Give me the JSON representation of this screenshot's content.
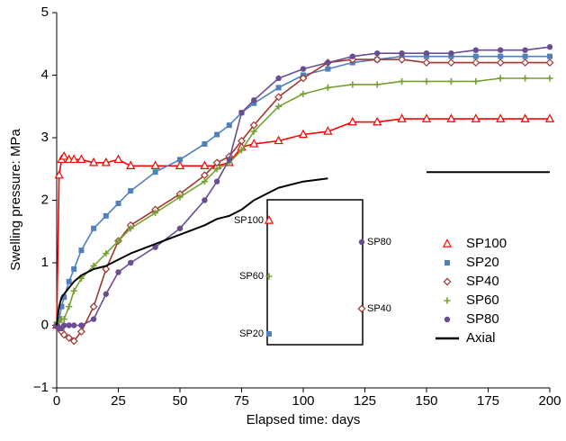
{
  "chart_data": {
    "type": "line",
    "xlabel": "Elapsed time: days",
    "ylabel": "Swelling pressure: MPa",
    "xlim": [
      0,
      200
    ],
    "xticks": [
      0,
      25,
      50,
      75,
      100,
      125,
      150,
      175,
      200
    ],
    "ylim": [
      -1,
      5
    ],
    "yticks": [
      {
        "value": -1,
        "label": "−1"
      },
      0,
      1,
      2,
      3,
      4,
      5
    ],
    "legend": "lower right",
    "x": [
      0,
      1,
      2,
      3,
      5,
      7,
      10,
      15,
      20,
      25,
      30,
      40,
      50,
      60,
      65,
      70,
      75,
      80,
      90,
      100,
      110,
      120,
      130,
      140,
      150,
      160,
      170,
      180,
      190,
      200
    ],
    "series": [
      {
        "name": "SP100",
        "color": "#ff0000",
        "marker": "triangle-open",
        "values": [
          0.0,
          2.4,
          2.65,
          2.7,
          2.65,
          2.65,
          2.65,
          2.6,
          2.6,
          2.65,
          2.55,
          2.55,
          2.55,
          2.55,
          2.55,
          2.6,
          2.85,
          2.9,
          2.95,
          3.05,
          3.1,
          3.25,
          3.25,
          3.3,
          3.3,
          3.3,
          3.3,
          3.3,
          3.3,
          3.3
        ]
      },
      {
        "name": "SP20",
        "color": "#4f81bd",
        "marker": "square",
        "values": [
          0.0,
          0.1,
          0.3,
          0.45,
          0.7,
          0.9,
          1.2,
          1.55,
          1.75,
          1.95,
          2.15,
          2.45,
          2.65,
          2.9,
          3.05,
          3.2,
          3.4,
          3.55,
          3.8,
          4.0,
          4.1,
          4.2,
          4.25,
          4.3,
          4.3,
          4.3,
          4.3,
          4.3,
          4.3,
          4.3
        ]
      },
      {
        "name": "SP40",
        "color": "#a0372f",
        "marker": "diamond-open",
        "values": [
          0.0,
          -0.05,
          -0.1,
          -0.15,
          -0.2,
          -0.25,
          -0.1,
          0.3,
          0.9,
          1.35,
          1.6,
          1.85,
          2.1,
          2.4,
          2.6,
          2.7,
          2.95,
          3.2,
          3.65,
          3.95,
          4.2,
          4.25,
          4.25,
          4.25,
          4.2,
          4.2,
          4.2,
          4.2,
          4.2,
          4.2
        ]
      },
      {
        "name": "SP60",
        "color": "#77a033",
        "marker": "plus",
        "values": [
          0.05,
          0.05,
          0.1,
          0.1,
          0.3,
          0.55,
          0.75,
          0.95,
          1.15,
          1.35,
          1.55,
          1.8,
          2.05,
          2.3,
          2.5,
          2.6,
          2.8,
          3.1,
          3.5,
          3.7,
          3.8,
          3.85,
          3.85,
          3.9,
          3.9,
          3.9,
          3.9,
          3.95,
          3.95,
          3.95
        ]
      },
      {
        "name": "SP80",
        "color": "#6a4c93",
        "marker": "circle",
        "values": [
          0.0,
          -0.05,
          -0.05,
          0.0,
          0.0,
          0.0,
          0.0,
          0.1,
          0.5,
          0.85,
          1.0,
          1.25,
          1.55,
          2.0,
          2.3,
          2.65,
          3.4,
          3.6,
          3.95,
          4.1,
          4.2,
          4.3,
          4.35,
          4.35,
          4.35,
          4.35,
          4.4,
          4.4,
          4.4,
          4.45
        ]
      },
      {
        "name": "Axial",
        "color": "#000000",
        "marker": "none",
        "values": [
          0.0,
          0.3,
          0.45,
          0.5,
          0.6,
          0.7,
          0.8,
          0.9,
          0.95,
          1.05,
          1.15,
          1.3,
          1.45,
          1.6,
          1.7,
          1.75,
          1.85,
          2.0,
          2.2,
          2.3,
          2.35,
          null,
          null,
          null,
          2.45,
          2.45,
          2.45,
          2.45,
          2.45,
          2.45
        ]
      }
    ],
    "inset_labels": [
      "SP100",
      "SP60",
      "SP20",
      "SP80",
      "SP40"
    ]
  }
}
